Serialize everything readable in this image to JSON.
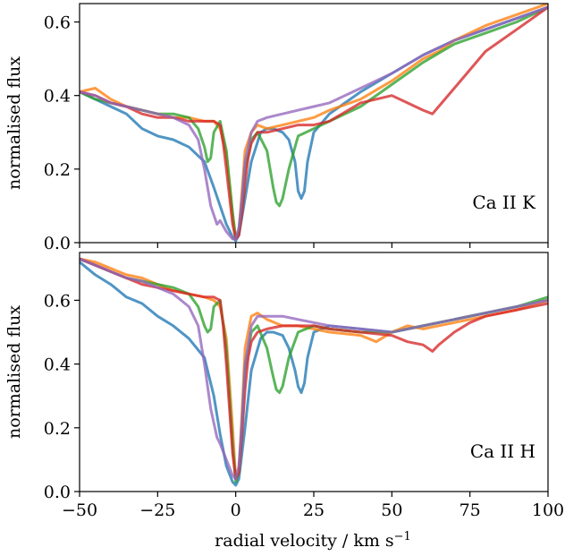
{
  "chart_data": [
    {
      "type": "line",
      "panel_label": "Ca II K",
      "xlabel": "",
      "ylabel": "normalised flux",
      "xlim": [
        -50,
        100
      ],
      "ylim": [
        0.0,
        0.65
      ],
      "xticks": [
        -50,
        -25,
        0,
        25,
        50,
        75,
        100
      ],
      "yticks": [
        0.0,
        0.2,
        0.4,
        0.6
      ],
      "ytick_labels": [
        "0.0",
        "0.2",
        "0.4",
        "0.6"
      ],
      "show_xtick_labels": false,
      "series": [
        {
          "color": "#1f77b4",
          "x": [
            -50,
            -45,
            -40,
            -35,
            -30,
            -25,
            -20,
            -15,
            -10,
            -7,
            -5,
            -3,
            -1,
            0,
            1,
            3,
            5,
            8,
            10,
            12,
            15,
            17,
            19,
            20,
            21,
            22,
            23,
            25,
            30,
            40,
            50,
            60,
            70,
            80,
            90,
            100
          ],
          "y": [
            0.41,
            0.39,
            0.37,
            0.35,
            0.31,
            0.29,
            0.28,
            0.26,
            0.22,
            0.15,
            0.1,
            0.05,
            0.015,
            0.005,
            0.02,
            0.12,
            0.22,
            0.3,
            0.31,
            0.31,
            0.3,
            0.28,
            0.22,
            0.14,
            0.12,
            0.14,
            0.22,
            0.3,
            0.35,
            0.41,
            0.46,
            0.51,
            0.55,
            0.58,
            0.61,
            0.64
          ]
        },
        {
          "color": "#ff7f0e",
          "x": [
            -50,
            -45,
            -40,
            -35,
            -30,
            -25,
            -20,
            -15,
            -10,
            -7,
            -5,
            -3,
            -1,
            0,
            1,
            2,
            3,
            5,
            7,
            10,
            15,
            20,
            25,
            30,
            40,
            50,
            60,
            65,
            70,
            80,
            90,
            100
          ],
          "y": [
            0.41,
            0.42,
            0.39,
            0.37,
            0.36,
            0.35,
            0.34,
            0.34,
            0.33,
            0.33,
            0.31,
            0.24,
            0.08,
            0.01,
            0.03,
            0.14,
            0.25,
            0.3,
            0.32,
            0.31,
            0.32,
            0.33,
            0.34,
            0.36,
            0.39,
            0.44,
            0.5,
            0.52,
            0.55,
            0.59,
            0.62,
            0.65
          ]
        },
        {
          "color": "#2ca02c",
          "x": [
            -50,
            -45,
            -40,
            -35,
            -30,
            -25,
            -20,
            -15,
            -12,
            -10,
            -9,
            -8,
            -7,
            -5,
            -3,
            -1,
            0,
            1,
            2,
            3,
            5,
            7,
            10,
            12,
            13,
            14,
            15,
            17,
            20,
            25,
            30,
            40,
            50,
            60,
            70,
            80,
            90,
            100
          ],
          "y": [
            0.41,
            0.39,
            0.38,
            0.37,
            0.36,
            0.35,
            0.35,
            0.34,
            0.31,
            0.26,
            0.22,
            0.23,
            0.3,
            0.33,
            0.25,
            0.08,
            0.01,
            0.03,
            0.1,
            0.2,
            0.28,
            0.3,
            0.25,
            0.15,
            0.11,
            0.1,
            0.12,
            0.2,
            0.29,
            0.31,
            0.33,
            0.37,
            0.43,
            0.49,
            0.54,
            0.57,
            0.6,
            0.64
          ]
        },
        {
          "color": "#d62728",
          "x": [
            -50,
            -45,
            -40,
            -35,
            -30,
            -25,
            -20,
            -15,
            -10,
            -7,
            -5,
            -4,
            -3,
            -1,
            0,
            1,
            2,
            3,
            4,
            5,
            7,
            10,
            15,
            20,
            25,
            30,
            40,
            50,
            55,
            60,
            63,
            65,
            70,
            75,
            80,
            90,
            100
          ],
          "y": [
            0.41,
            0.4,
            0.38,
            0.37,
            0.35,
            0.34,
            0.34,
            0.33,
            0.33,
            0.33,
            0.32,
            0.27,
            0.2,
            0.05,
            0.01,
            0.02,
            0.08,
            0.16,
            0.23,
            0.27,
            0.3,
            0.3,
            0.31,
            0.32,
            0.32,
            0.33,
            0.38,
            0.4,
            0.38,
            0.36,
            0.35,
            0.37,
            0.42,
            0.47,
            0.52,
            0.58,
            0.64
          ]
        },
        {
          "color": "#9467bd",
          "x": [
            -50,
            -45,
            -40,
            -35,
            -30,
            -25,
            -20,
            -15,
            -12,
            -10,
            -8,
            -6,
            -5,
            -3,
            -1,
            0,
            1,
            2,
            3,
            5,
            7,
            10,
            15,
            20,
            25,
            30,
            40,
            50,
            60,
            70,
            80,
            90,
            100
          ],
          "y": [
            0.41,
            0.4,
            0.38,
            0.37,
            0.36,
            0.35,
            0.34,
            0.32,
            0.28,
            0.2,
            0.1,
            0.05,
            0.06,
            0.03,
            0.01,
            0.01,
            0.04,
            0.12,
            0.22,
            0.3,
            0.33,
            0.34,
            0.35,
            0.36,
            0.37,
            0.38,
            0.42,
            0.46,
            0.51,
            0.55,
            0.58,
            0.61,
            0.64
          ]
        }
      ]
    },
    {
      "type": "line",
      "panel_label": "Ca II H",
      "xlabel": "radial velocity / km s",
      "xlabel_sup": "−1",
      "ylabel": "normalised flux",
      "xlim": [
        -50,
        100
      ],
      "ylim": [
        0.0,
        0.75
      ],
      "xticks": [
        -50,
        -25,
        0,
        25,
        50,
        75,
        100
      ],
      "xtick_labels": [
        "−50",
        "−25",
        "0",
        "25",
        "50",
        "75",
        "100"
      ],
      "yticks": [
        0.0,
        0.2,
        0.4,
        0.6
      ],
      "ytick_labels": [
        "0.0",
        "0.2",
        "0.4",
        "0.6"
      ],
      "show_xtick_labels": true,
      "series": [
        {
          "color": "#1f77b4",
          "x": [
            -50,
            -45,
            -40,
            -35,
            -30,
            -25,
            -20,
            -15,
            -10,
            -7,
            -5,
            -3,
            -1,
            0,
            1,
            3,
            5,
            8,
            10,
            12,
            15,
            17,
            19,
            20,
            21,
            22,
            23,
            25,
            30,
            40,
            50,
            60,
            70,
            80,
            90,
            100
          ],
          "y": [
            0.72,
            0.68,
            0.65,
            0.61,
            0.59,
            0.55,
            0.52,
            0.48,
            0.42,
            0.3,
            0.18,
            0.08,
            0.03,
            0.02,
            0.04,
            0.2,
            0.38,
            0.48,
            0.5,
            0.5,
            0.49,
            0.45,
            0.38,
            0.33,
            0.31,
            0.34,
            0.42,
            0.5,
            0.52,
            0.51,
            0.5,
            0.52,
            0.54,
            0.56,
            0.58,
            0.6
          ]
        },
        {
          "color": "#ff7f0e",
          "x": [
            -50,
            -45,
            -40,
            -35,
            -30,
            -25,
            -20,
            -15,
            -10,
            -7,
            -5,
            -3,
            -1,
            0,
            1,
            2,
            3,
            5,
            7,
            10,
            15,
            20,
            25,
            30,
            40,
            45,
            50,
            55,
            60,
            70,
            80,
            90,
            100
          ],
          "y": [
            0.73,
            0.72,
            0.7,
            0.68,
            0.67,
            0.65,
            0.63,
            0.62,
            0.61,
            0.6,
            0.58,
            0.48,
            0.2,
            0.04,
            0.06,
            0.25,
            0.45,
            0.55,
            0.56,
            0.54,
            0.52,
            0.52,
            0.51,
            0.5,
            0.49,
            0.47,
            0.5,
            0.52,
            0.51,
            0.53,
            0.55,
            0.57,
            0.6
          ]
        },
        {
          "color": "#2ca02c",
          "x": [
            -50,
            -45,
            -40,
            -35,
            -30,
            -25,
            -20,
            -15,
            -12,
            -10,
            -9,
            -8,
            -7,
            -5,
            -3,
            -1,
            0,
            1,
            2,
            3,
            5,
            7,
            10,
            12,
            13,
            14,
            15,
            17,
            20,
            25,
            30,
            40,
            50,
            60,
            70,
            80,
            90,
            100
          ],
          "y": [
            0.73,
            0.71,
            0.69,
            0.67,
            0.66,
            0.65,
            0.64,
            0.62,
            0.58,
            0.52,
            0.5,
            0.51,
            0.58,
            0.6,
            0.45,
            0.15,
            0.03,
            0.06,
            0.2,
            0.38,
            0.5,
            0.52,
            0.45,
            0.36,
            0.32,
            0.31,
            0.33,
            0.42,
            0.5,
            0.52,
            0.51,
            0.5,
            0.5,
            0.52,
            0.54,
            0.56,
            0.58,
            0.61
          ]
        },
        {
          "color": "#d62728",
          "x": [
            -50,
            -45,
            -40,
            -35,
            -30,
            -25,
            -20,
            -15,
            -10,
            -7,
            -5,
            -4,
            -3,
            -1,
            0,
            1,
            2,
            3,
            4,
            5,
            7,
            10,
            15,
            20,
            25,
            30,
            40,
            50,
            55,
            60,
            63,
            65,
            70,
            75,
            80,
            90,
            100
          ],
          "y": [
            0.73,
            0.71,
            0.69,
            0.67,
            0.65,
            0.64,
            0.63,
            0.62,
            0.61,
            0.61,
            0.6,
            0.52,
            0.4,
            0.12,
            0.04,
            0.06,
            0.18,
            0.32,
            0.42,
            0.47,
            0.5,
            0.51,
            0.52,
            0.52,
            0.52,
            0.51,
            0.5,
            0.49,
            0.47,
            0.46,
            0.44,
            0.46,
            0.5,
            0.53,
            0.55,
            0.57,
            0.59
          ]
        },
        {
          "color": "#9467bd",
          "x": [
            -50,
            -45,
            -40,
            -35,
            -30,
            -25,
            -20,
            -15,
            -12,
            -10,
            -8,
            -6,
            -5,
            -3,
            -1,
            0,
            1,
            2,
            3,
            5,
            7,
            10,
            15,
            20,
            25,
            30,
            40,
            50,
            60,
            70,
            80,
            90,
            100
          ],
          "y": [
            0.73,
            0.71,
            0.69,
            0.67,
            0.66,
            0.64,
            0.62,
            0.58,
            0.52,
            0.4,
            0.26,
            0.17,
            0.15,
            0.1,
            0.05,
            0.04,
            0.08,
            0.22,
            0.4,
            0.52,
            0.55,
            0.55,
            0.55,
            0.54,
            0.53,
            0.52,
            0.51,
            0.5,
            0.52,
            0.54,
            0.56,
            0.58,
            0.6
          ]
        }
      ]
    }
  ]
}
